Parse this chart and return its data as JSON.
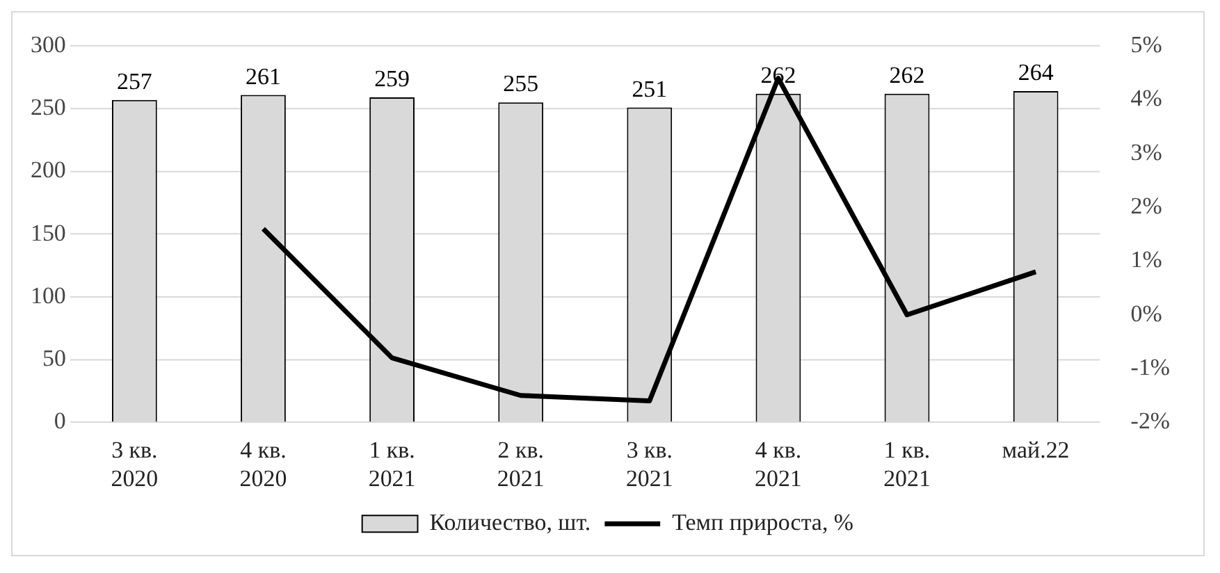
{
  "chart_data": {
    "type": "bar",
    "categories": [
      "3 кв. 2020",
      "4 кв. 2020",
      "1 кв. 2021",
      "2 кв. 2021",
      "3 кв. 2021",
      "4 кв. 2021",
      "1 кв. 2021",
      "май.22"
    ],
    "series": [
      {
        "name": "Количество, шт.",
        "color": "#d9d9d9",
        "values": [
          257,
          261,
          259,
          255,
          251,
          262,
          262,
          264
        ],
        "value_labels": [
          "257",
          "261",
          "259",
          "255",
          "251",
          "262",
          "262",
          "264"
        ]
      },
      {
        "name": "Темп прироста, %",
        "type": "line",
        "axis": "y2",
        "color": "#000000",
        "values": [
          null,
          1.6,
          -0.8,
          -1.5,
          -1.6,
          4.4,
          0,
          0.8
        ]
      }
    ],
    "ylim": [
      0,
      300
    ],
    "yticks": [
      0,
      50,
      100,
      150,
      200,
      250,
      300
    ],
    "y2lim": [
      -2,
      5
    ],
    "y2ticks": [
      {
        "value": -2,
        "label": "-2%"
      },
      {
        "value": -1,
        "label": "-1%"
      },
      {
        "value": 0,
        "label": "0%"
      },
      {
        "value": 1,
        "label": "1%"
      },
      {
        "value": 2,
        "label": "2%"
      },
      {
        "value": 3,
        "label": "3%"
      },
      {
        "value": 4,
        "label": "4%"
      },
      {
        "value": 5,
        "label": "5%"
      }
    ],
    "grid": "y",
    "legend": "bottom",
    "marker": "none",
    "line_style": "solid"
  }
}
